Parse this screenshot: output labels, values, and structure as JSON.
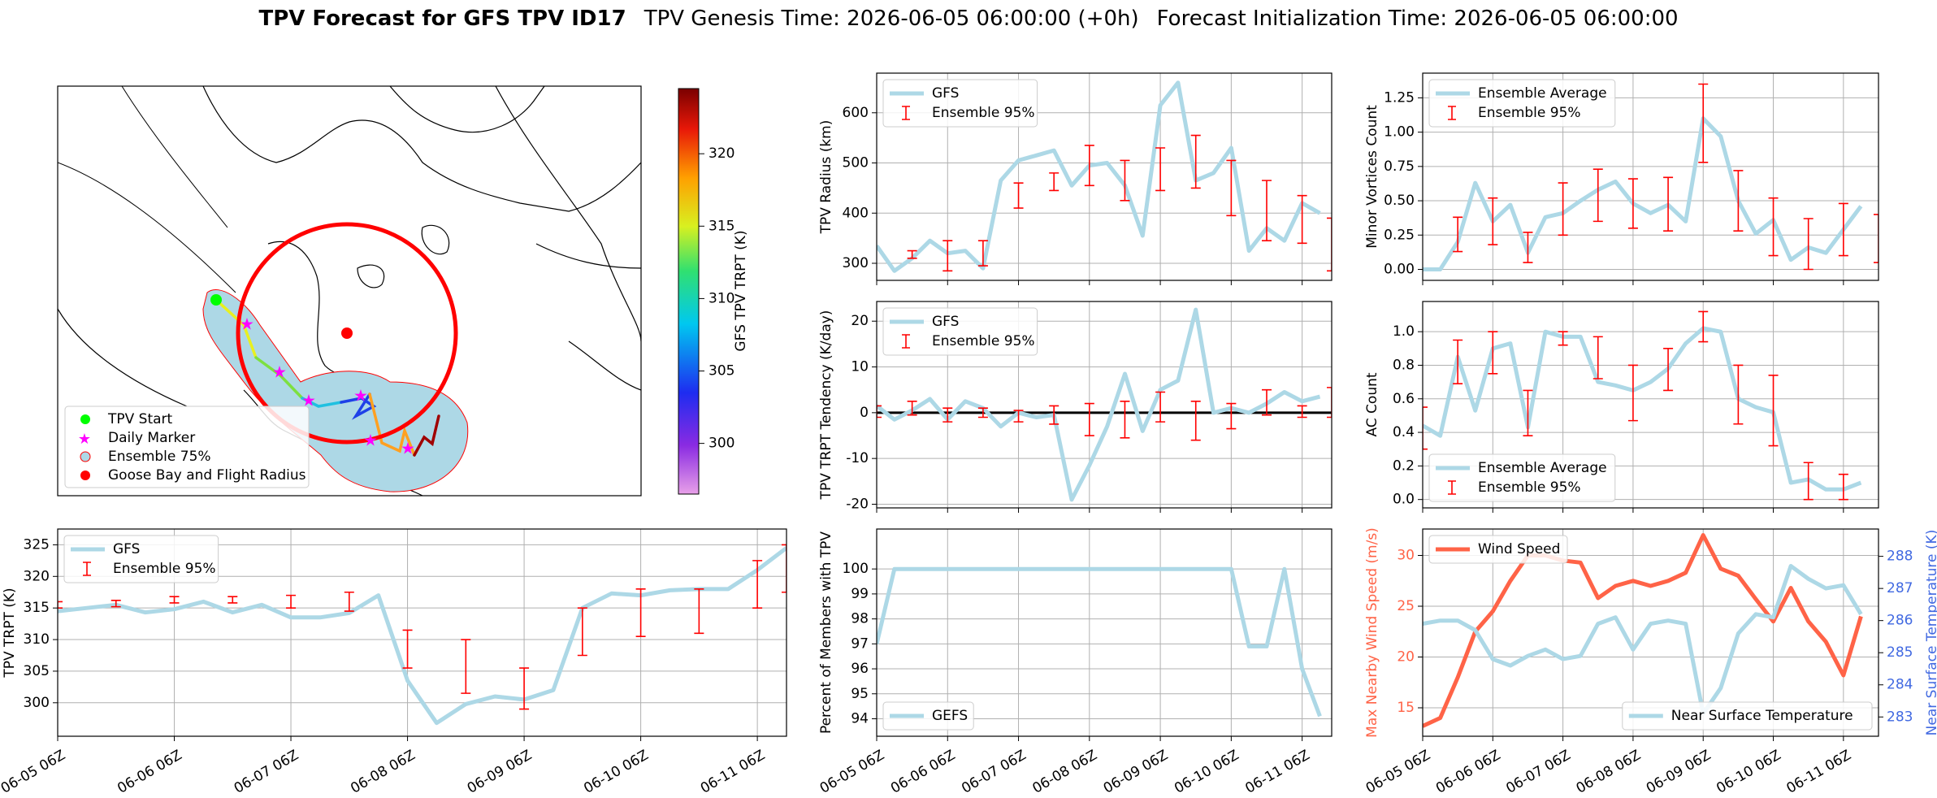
{
  "figure": {
    "title": "TPV Forecast for GFS TPV ID17",
    "genesis": "TPV Genesis Time: 2026-06-05 06:00:00 (+0h)",
    "init": "Forecast Initialization Time: 2026-06-05 06:00:00"
  },
  "chart_data": [
    {
      "type": "map",
      "legend": [
        "TPV Start",
        "Daily Marker",
        "Ensemble 75%",
        "Goose Bay and Flight Radius"
      ],
      "colorbar": {
        "label": "GFS TPV TRPT (K)",
        "clim": [
          296.5,
          324.5
        ],
        "ticks": [
          300,
          305,
          310,
          315,
          320
        ]
      }
    },
    {
      "type": "line",
      "ylabel": "TPV TRPT (K)",
      "grid": true,
      "legend": "upper left",
      "x": [
        0,
        6,
        12,
        18,
        24,
        30,
        36,
        42,
        48,
        54,
        60,
        66,
        72,
        78,
        84,
        90,
        96,
        102,
        108,
        114,
        120,
        126,
        132,
        138,
        144,
        150
      ],
      "xlim": [
        0,
        150
      ],
      "xticks": [
        {
          "value": 0,
          "label": "06-05 06Z"
        },
        {
          "value": 24,
          "label": "06-06 06Z"
        },
        {
          "value": 48,
          "label": "06-07 06Z"
        },
        {
          "value": 72,
          "label": "06-08 06Z"
        },
        {
          "value": 96,
          "label": "06-09 06Z"
        },
        {
          "value": 120,
          "label": "06-10 06Z"
        },
        {
          "value": 144,
          "label": "06-11 06Z"
        }
      ],
      "ylim": [
        294.7,
        327.5
      ],
      "yticks": [
        300,
        305,
        310,
        315,
        320,
        325
      ],
      "series": [
        {
          "name": "GFS",
          "color": "#add8e6",
          "values": [
            314.5,
            315,
            315.5,
            314.3,
            314.8,
            316,
            314.3,
            315.5,
            313.5,
            313.5,
            314.2,
            317,
            303.5,
            296.8,
            299.8,
            301,
            300.5,
            302,
            315,
            317.3,
            317,
            317.8,
            318,
            318,
            321,
            324.5
          ]
        }
      ],
      "errorbars": {
        "name": "Ensemble 95%",
        "color": "#ff0000",
        "x": [
          0,
          12,
          24,
          36,
          48,
          60,
          72,
          84,
          96,
          108,
          120,
          132,
          144,
          150
        ],
        "lower": [
          315,
          315.2,
          315.8,
          315.8,
          315,
          314.5,
          305.5,
          301.5,
          299,
          307.5,
          310.5,
          311,
          315,
          317.5
        ],
        "upper": [
          316,
          316.2,
          316.8,
          316.8,
          317,
          317.5,
          311.5,
          310,
          305.5,
          315,
          318,
          318,
          322.5,
          325
        ]
      }
    },
    {
      "type": "line",
      "ylabel": "TPV Radius (km)",
      "grid": true,
      "legend": "upper left",
      "x": [
        0,
        6,
        12,
        18,
        24,
        30,
        36,
        42,
        48,
        54,
        60,
        66,
        72,
        78,
        84,
        90,
        96,
        102,
        108,
        114,
        120,
        126,
        132,
        138,
        144,
        150
      ],
      "xlim": [
        0,
        154
      ],
      "xticks": [
        0,
        24,
        48,
        72,
        96,
        120,
        144
      ],
      "ylim": [
        266,
        679
      ],
      "yticks": [
        300,
        400,
        500,
        600
      ],
      "series": [
        {
          "name": "GFS",
          "color": "#add8e6",
          "values": [
            335,
            285,
            310,
            345,
            320,
            325,
            290,
            465,
            505,
            515,
            525,
            455,
            495,
            500,
            455,
            355,
            615,
            660,
            465,
            480,
            530,
            325,
            370,
            345,
            420,
            400
          ]
        }
      ],
      "errorbars": {
        "name": "Ensemble 95%",
        "color": "#ff0000",
        "x": [
          12,
          24,
          36,
          48,
          60,
          72,
          84,
          96,
          108,
          120,
          132,
          144,
          154
        ],
        "lower": [
          310,
          285,
          295,
          410,
          445,
          455,
          425,
          445,
          450,
          395,
          345,
          340,
          285
        ],
        "upper": [
          325,
          345,
          345,
          460,
          480,
          535,
          505,
          530,
          555,
          505,
          465,
          435,
          390
        ]
      }
    },
    {
      "type": "line",
      "ylabel": "TPV TRPT Tendency (K/day)",
      "grid": true,
      "legend": "upper left",
      "zero_line": true,
      "x": [
        0,
        6,
        12,
        18,
        24,
        30,
        36,
        42,
        48,
        54,
        60,
        66,
        72,
        78,
        84,
        90,
        96,
        102,
        108,
        114,
        120,
        126,
        132,
        138,
        144,
        150
      ],
      "xlim": [
        0,
        154
      ],
      "xticks": [
        0,
        24,
        48,
        72,
        96,
        120,
        144
      ],
      "ylim": [
        -20.8,
        24.3
      ],
      "yticks": [
        -20,
        -10,
        0,
        10,
        20
      ],
      "series": [
        {
          "name": "GFS",
          "color": "#add8e6",
          "values": [
            1.5,
            -1.5,
            0.5,
            3,
            -1.5,
            2.5,
            1,
            -3,
            0,
            -1,
            -0.5,
            -19,
            -11.5,
            -3,
            8.5,
            -4,
            5,
            7,
            22.5,
            0,
            1,
            0,
            2,
            4.5,
            2.5,
            3.5
          ]
        }
      ],
      "errorbars": {
        "name": "Ensemble 95%",
        "color": "#ff0000",
        "x": [
          0,
          12,
          24,
          36,
          48,
          60,
          72,
          84,
          96,
          108,
          120,
          132,
          144,
          154
        ],
        "lower": [
          -1,
          -0.5,
          -2,
          -1,
          -2,
          -2.5,
          -5,
          -5.5,
          -2,
          -6,
          -3.5,
          -0.5,
          -1,
          -1
        ],
        "upper": [
          1.5,
          2.5,
          1,
          1,
          0.5,
          1.5,
          2,
          2.5,
          4.5,
          2.5,
          2,
          5,
          1.5,
          5.5
        ]
      }
    },
    {
      "type": "line",
      "ylabel": "Percent of Members with TPV",
      "grid": true,
      "legend": "lower left",
      "x": [
        0,
        6,
        12,
        18,
        24,
        30,
        36,
        42,
        48,
        54,
        60,
        66,
        72,
        78,
        84,
        90,
        96,
        102,
        108,
        114,
        120,
        126,
        132,
        138,
        144,
        150
      ],
      "xlim": [
        0,
        154
      ],
      "xticks": [
        {
          "value": 0,
          "label": "06-05 06Z"
        },
        {
          "value": 24,
          "label": "06-06 06Z"
        },
        {
          "value": 48,
          "label": "06-07 06Z"
        },
        {
          "value": 72,
          "label": "06-08 06Z"
        },
        {
          "value": 96,
          "label": "06-09 06Z"
        },
        {
          "value": 120,
          "label": "06-10 06Z"
        },
        {
          "value": 144,
          "label": "06-11 06Z"
        }
      ],
      "ylim": [
        93.3,
        101.6
      ],
      "yticks": [
        94,
        95,
        96,
        97,
        98,
        99,
        100
      ],
      "series": [
        {
          "name": "GEFS",
          "color": "#add8e6",
          "values": [
            97,
            100,
            100,
            100,
            100,
            100,
            100,
            100,
            100,
            100,
            100,
            100,
            100,
            100,
            100,
            100,
            100,
            100,
            100,
            100,
            100,
            96.9,
            96.9,
            100,
            96,
            94.1
          ]
        }
      ]
    },
    {
      "type": "line",
      "ylabel": "Minor Vortices Count",
      "grid": true,
      "legend": "upper left",
      "x": [
        0,
        6,
        12,
        18,
        24,
        30,
        36,
        42,
        48,
        54,
        60,
        66,
        72,
        78,
        84,
        90,
        96,
        102,
        108,
        114,
        120,
        126,
        132,
        138,
        144,
        150
      ],
      "xlim": [
        0,
        156
      ],
      "xticks": [
        0,
        24,
        48,
        72,
        96,
        120,
        144
      ],
      "ylim": [
        -0.08,
        1.43
      ],
      "yticks": [
        {
          "value": 0,
          "label": "0.00"
        },
        {
          "value": 0.25,
          "label": "0.25"
        },
        {
          "value": 0.5,
          "label": "0.50"
        },
        {
          "value": 0.75,
          "label": "0.75"
        },
        {
          "value": 1,
          "label": "1.00"
        },
        {
          "value": 1.25,
          "label": "1.25"
        }
      ],
      "series": [
        {
          "name": "Ensemble Average",
          "color": "#add8e6",
          "values": [
            0,
            0,
            0.2,
            0.63,
            0.35,
            0.47,
            0.12,
            0.38,
            0.41,
            0.5,
            0.58,
            0.64,
            0.48,
            0.41,
            0.47,
            0.35,
            1.1,
            0.97,
            0.5,
            0.26,
            0.36,
            0.07,
            0.16,
            0.12,
            0.29,
            0.46
          ]
        }
      ],
      "errorbars": {
        "name": "Ensemble 95%",
        "color": "#ff0000",
        "x": [
          12,
          24,
          36,
          48,
          60,
          72,
          84,
          96,
          108,
          120,
          132,
          144,
          156
        ],
        "lower": [
          0.13,
          0.18,
          0.05,
          0.25,
          0.35,
          0.3,
          0.28,
          0.78,
          0.28,
          0.1,
          0,
          0.1,
          0.05
        ],
        "upper": [
          0.38,
          0.52,
          0.27,
          0.63,
          0.73,
          0.66,
          0.67,
          1.35,
          0.72,
          0.52,
          0.37,
          0.48,
          0.4
        ]
      }
    },
    {
      "type": "line",
      "ylabel": "AC Count",
      "grid": true,
      "legend": "lower left",
      "x": [
        0,
        6,
        12,
        18,
        24,
        30,
        36,
        42,
        48,
        54,
        60,
        66,
        72,
        78,
        84,
        90,
        96,
        102,
        108,
        114,
        120,
        126,
        132,
        138,
        144,
        150
      ],
      "xlim": [
        0,
        156
      ],
      "xticks": [
        0,
        24,
        48,
        72,
        96,
        120,
        144
      ],
      "ylim": [
        -0.05,
        1.18
      ],
      "yticks": [
        {
          "value": 0,
          "label": "0.0"
        },
        {
          "value": 0.2,
          "label": "0.2"
        },
        {
          "value": 0.4,
          "label": "0.4"
        },
        {
          "value": 0.6,
          "label": "0.6"
        },
        {
          "value": 0.8,
          "label": "0.8"
        },
        {
          "value": 1,
          "label": "1.0"
        }
      ],
      "series": [
        {
          "name": "Ensemble Average",
          "color": "#add8e6",
          "values": [
            0.44,
            0.38,
            0.85,
            0.53,
            0.9,
            0.93,
            0.43,
            1.0,
            0.97,
            0.97,
            0.7,
            0.68,
            0.65,
            0.7,
            0.78,
            0.93,
            1.02,
            1.0,
            0.6,
            0.55,
            0.52,
            0.1,
            0.12,
            0.06,
            0.06,
            0.1
          ]
        }
      ],
      "errorbars": {
        "name": "Ensemble 95%",
        "color": "#ff0000",
        "x": [
          0,
          12,
          24,
          36,
          48,
          60,
          72,
          84,
          96,
          108,
          120,
          132,
          144
        ],
        "lower": [
          0.3,
          0.69,
          0.75,
          0.38,
          0.92,
          0.72,
          0.47,
          0.65,
          0.94,
          0.45,
          0.32,
          0,
          0
        ],
        "upper": [
          0.55,
          0.95,
          1.0,
          0.65,
          1.0,
          0.97,
          0.8,
          0.9,
          1.12,
          0.8,
          0.74,
          0.22,
          0.15
        ]
      }
    },
    {
      "type": "line",
      "ylabel": "Max Nearby Wind Speed (m/s)",
      "ylabel_color": "#ff6347",
      "y2label": "Near Surface Temperature (K)",
      "y2label_color": "#4169e1",
      "grid": true,
      "x": [
        0,
        6,
        12,
        18,
        24,
        30,
        36,
        42,
        48,
        54,
        60,
        66,
        72,
        78,
        84,
        90,
        96,
        102,
        108,
        114,
        120,
        126,
        132,
        138,
        144,
        150
      ],
      "xlim": [
        0,
        156
      ],
      "xticks": [
        {
          "value": 0,
          "label": "06-05 06Z"
        },
        {
          "value": 24,
          "label": "06-06 06Z"
        },
        {
          "value": 48,
          "label": "06-07 06Z"
        },
        {
          "value": 72,
          "label": "06-08 06Z"
        },
        {
          "value": 96,
          "label": "06-09 06Z"
        },
        {
          "value": 120,
          "label": "06-10 06Z"
        },
        {
          "value": 144,
          "label": "06-11 06Z"
        }
      ],
      "ylim": [
        12.2,
        32.6
      ],
      "yticks": [
        15,
        20,
        25,
        30
      ],
      "y2lim": [
        282.4,
        288.85
      ],
      "y2ticks": [
        283,
        284,
        285,
        286,
        287,
        288
      ],
      "series": [
        {
          "name": "Wind Speed",
          "color": "#ff6347",
          "legend": "upper left",
          "values": [
            13.2,
            14,
            18,
            22.5,
            24.5,
            27.5,
            30,
            30,
            29.5,
            29.3,
            25.8,
            27,
            27.5,
            27,
            27.5,
            28.3,
            32,
            28.7,
            28,
            25.7,
            23.5,
            26.8,
            23.5,
            21.5,
            18.2,
            24
          ]
        },
        {
          "name": "Near Surface Temperature",
          "color": "#add8e6",
          "axis": "y2",
          "legend": "lower right",
          "values": [
            285.9,
            286,
            286,
            285.7,
            284.8,
            284.6,
            284.9,
            285.1,
            284.8,
            284.9,
            285.9,
            286.1,
            285.1,
            285.9,
            286,
            285.9,
            283.1,
            283.9,
            285.6,
            286.2,
            286.1,
            287.7,
            287.3,
            287,
            287.1,
            286.2
          ]
        }
      ]
    }
  ]
}
